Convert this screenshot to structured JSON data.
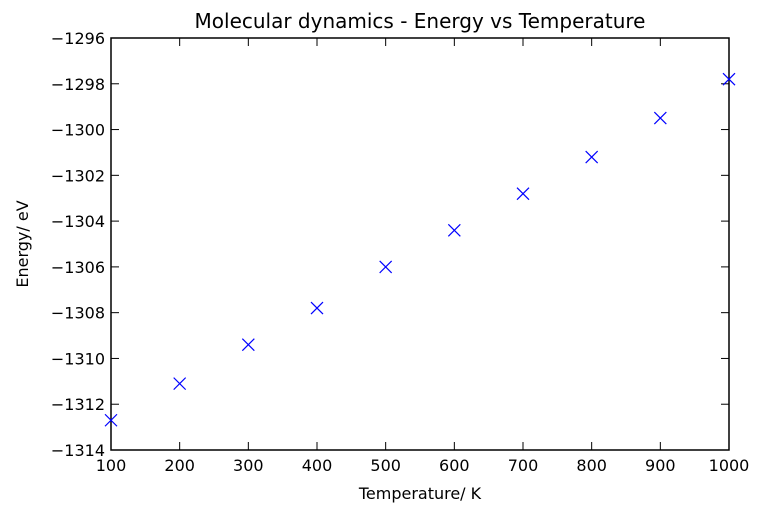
{
  "chart_data": {
    "type": "scatter",
    "title": "Molecular dynamics - Energy vs Temperature",
    "xlabel": "Temperature/ K",
    "ylabel": "Energy/ eV",
    "xlim": [
      100,
      1000
    ],
    "ylim": [
      -1314,
      -1296
    ],
    "xticks": [
      100,
      200,
      300,
      400,
      500,
      600,
      700,
      800,
      900,
      1000
    ],
    "yticks": [
      -1314,
      -1312,
      -1310,
      -1308,
      -1306,
      -1304,
      -1302,
      -1300,
      -1298,
      -1296
    ],
    "xtick_labels": [
      "100",
      "200",
      "300",
      "400",
      "500",
      "600",
      "700",
      "800",
      "900",
      "1000"
    ],
    "ytick_labels": [
      "−1314",
      "−1312",
      "−1310",
      "−1308",
      "−1306",
      "−1304",
      "−1302",
      "−1300",
      "−1298",
      "−1296"
    ],
    "grid": false,
    "marker": "x",
    "color": "#0000ff",
    "x": [
      100,
      200,
      300,
      400,
      500,
      600,
      700,
      800,
      900,
      1000
    ],
    "y": [
      -1312.7,
      -1311.1,
      -1309.4,
      -1307.8,
      -1306.0,
      -1304.4,
      -1302.8,
      -1301.2,
      -1299.5,
      -1297.8
    ]
  }
}
